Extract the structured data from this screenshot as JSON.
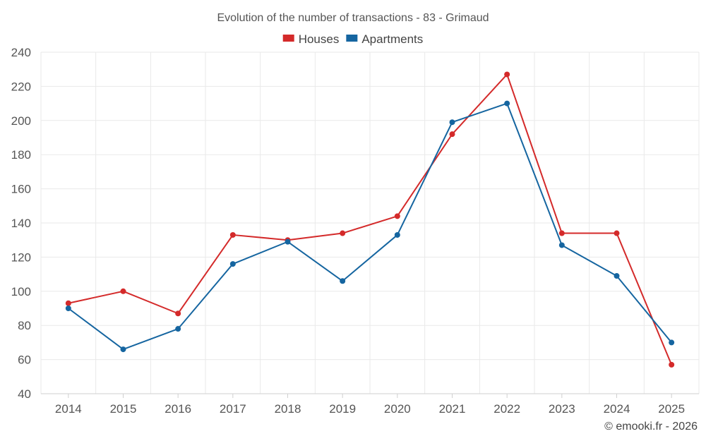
{
  "chart_data": {
    "type": "line",
    "title": "Evolution of the number of transactions - 83 - Grimaud",
    "categories": [
      "2014",
      "2015",
      "2016",
      "2017",
      "2018",
      "2019",
      "2020",
      "2021",
      "2022",
      "2023",
      "2024",
      "2025"
    ],
    "series": [
      {
        "name": "Houses",
        "color": "#d42a2a",
        "values": [
          93,
          100,
          87,
          133,
          130,
          134,
          144,
          192,
          227,
          134,
          134,
          57
        ]
      },
      {
        "name": "Apartments",
        "color": "#1565a0",
        "values": [
          90,
          66,
          78,
          116,
          129,
          106,
          133,
          199,
          210,
          127,
          109,
          70
        ]
      }
    ],
    "ylim": [
      40,
      240
    ],
    "yticks": [
      40,
      60,
      80,
      100,
      120,
      140,
      160,
      180,
      200,
      220,
      240
    ],
    "grid": true,
    "legend": "top-center",
    "xlabel": "",
    "ylabel": ""
  },
  "credit": "© emooki.fr - 2026"
}
